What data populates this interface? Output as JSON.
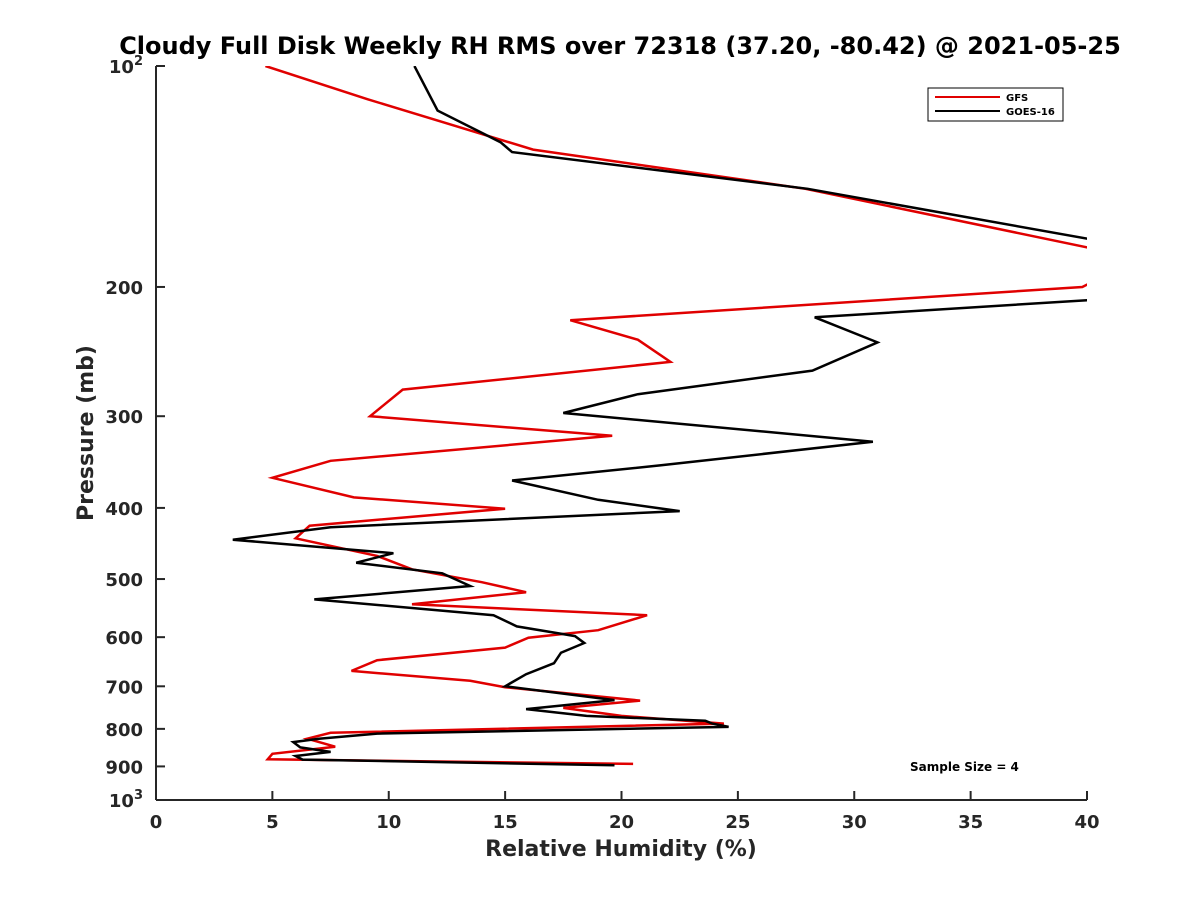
{
  "chart_data": {
    "type": "line",
    "title": "Cloudy Full Disk Weekly RH RMS over 72318 (37.20, -80.42) @ 2021-05-25",
    "xlabel": "Relative Humidity (%)",
    "ylabel": "Pressure (mb)",
    "xlim": [
      0,
      40
    ],
    "ylim": [
      100,
      1000
    ],
    "yscale": "log",
    "y_reversed": true,
    "x_ticks": [
      "0",
      "5",
      "10",
      "15",
      "20",
      "25",
      "30",
      "35",
      "40"
    ],
    "y_ticks": [
      {
        "value": 100,
        "base": "10",
        "exp": "2"
      },
      {
        "value": 200,
        "label": "200"
      },
      {
        "value": 300,
        "label": "300"
      },
      {
        "value": 400,
        "label": "400"
      },
      {
        "value": 500,
        "label": "500"
      },
      {
        "value": 600,
        "label": "600"
      },
      {
        "value": 700,
        "label": "700"
      },
      {
        "value": 800,
        "label": "800"
      },
      {
        "value": 900,
        "label": "900"
      },
      {
        "value": 1000,
        "base": "10",
        "exp": "3"
      }
    ],
    "legend_position": "top-right",
    "annotation": "Sample Size = 4",
    "series": [
      {
        "name": "GFS",
        "color": "#e00000",
        "points": [
          [
            4.7,
            100
          ],
          [
            9.1,
            111
          ],
          [
            16.2,
            130
          ],
          [
            27.9,
            147
          ],
          [
            40.5,
            178
          ],
          [
            40.5,
            195
          ],
          [
            39.8,
            200
          ],
          [
            17.8,
            222
          ],
          [
            20.7,
            236
          ],
          [
            22.1,
            253
          ],
          [
            10.6,
            276
          ],
          [
            9.2,
            300
          ],
          [
            19.6,
            319
          ],
          [
            7.5,
            345
          ],
          [
            5.0,
            364
          ],
          [
            8.5,
            387
          ],
          [
            15.0,
            401
          ],
          [
            6.6,
            423
          ],
          [
            6.0,
            440
          ],
          [
            9.5,
            465
          ],
          [
            11.0,
            485
          ],
          [
            14.0,
            505
          ],
          [
            15.9,
            521
          ],
          [
            11.0,
            541
          ],
          [
            21.1,
            560
          ],
          [
            19.0,
            587
          ],
          [
            16.0,
            601
          ],
          [
            15.0,
            620
          ],
          [
            9.5,
            645
          ],
          [
            8.4,
            667
          ],
          [
            13.5,
            688
          ],
          [
            15.0,
            702
          ],
          [
            20.8,
            732
          ],
          [
            17.5,
            749
          ],
          [
            20.0,
            768
          ],
          [
            24.4,
            787
          ],
          [
            7.5,
            810
          ],
          [
            6.5,
            825
          ],
          [
            7.7,
            846
          ],
          [
            5.0,
            865
          ],
          [
            4.8,
            880
          ],
          [
            20.5,
            893
          ]
        ]
      },
      {
        "name": "GOES-16",
        "color": "#000000",
        "points": [
          [
            11.1,
            100
          ],
          [
            12.1,
            115
          ],
          [
            14.8,
            127
          ],
          [
            15.3,
            131
          ],
          [
            28.0,
            147
          ],
          [
            40.5,
            173
          ],
          [
            40.5,
            208
          ],
          [
            28.3,
            220
          ],
          [
            31.0,
            238
          ],
          [
            28.2,
            260
          ],
          [
            20.7,
            280
          ],
          [
            17.5,
            297
          ],
          [
            30.8,
            325
          ],
          [
            21.7,
            350
          ],
          [
            15.3,
            367
          ],
          [
            19.0,
            390
          ],
          [
            22.5,
            404
          ],
          [
            7.5,
            425
          ],
          [
            3.3,
            442
          ],
          [
            10.2,
            461
          ],
          [
            8.6,
            475
          ],
          [
            12.3,
            491
          ],
          [
            13.5,
            511
          ],
          [
            6.8,
            533
          ],
          [
            14.5,
            560
          ],
          [
            15.5,
            580
          ],
          [
            18.0,
            598
          ],
          [
            18.4,
            611
          ],
          [
            17.4,
            630
          ],
          [
            17.1,
            651
          ],
          [
            15.9,
            674
          ],
          [
            15.0,
            700
          ],
          [
            19.7,
            731
          ],
          [
            15.9,
            752
          ],
          [
            18.5,
            768
          ],
          [
            23.6,
            780
          ],
          [
            23.9,
            787
          ],
          [
            24.6,
            795
          ],
          [
            9.5,
            812
          ],
          [
            7.0,
            825
          ],
          [
            5.9,
            834
          ],
          [
            6.2,
            848
          ],
          [
            7.5,
            860
          ],
          [
            6.0,
            871
          ],
          [
            6.3,
            881
          ],
          [
            19.7,
            897
          ]
        ]
      }
    ]
  }
}
